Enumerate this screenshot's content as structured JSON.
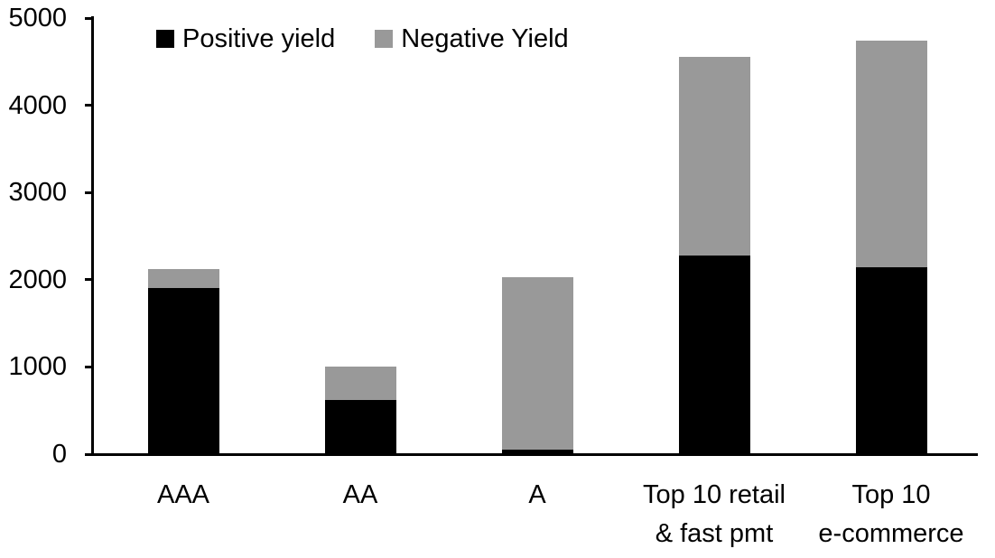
{
  "chart_data": {
    "type": "bar",
    "stacked": true,
    "title": "",
    "xlabel": "",
    "ylabel": "",
    "categories": [
      "AAA",
      "AA",
      "A",
      "Top 10 retail & fast pmt",
      "Top 10 e-commerce"
    ],
    "category_label_lines": [
      [
        "AAA"
      ],
      [
        "AA"
      ],
      [
        "A"
      ],
      [
        "Top 10 retail",
        "& fast pmt"
      ],
      [
        "Top 10",
        "e-commerce"
      ]
    ],
    "series": [
      {
        "name": "Positive yield",
        "color": "#000000",
        "values": [
          1900,
          620,
          50,
          2280,
          2140
        ]
      },
      {
        "name": "Negative Yield",
        "color": "#999999",
        "values": [
          220,
          380,
          1980,
          2270,
          2600
        ]
      }
    ],
    "stack_totals": [
      2120,
      1000,
      2030,
      4550,
      4740
    ],
    "ylim": [
      0,
      5000
    ],
    "yticks": [
      "0",
      "1000",
      "2000",
      "3000",
      "4000",
      "5000"
    ],
    "legend_position": "top-left-inside",
    "grid": false,
    "colors": {
      "positive_yield": "#000000",
      "negative_yield": "#999999",
      "axis": "#000000",
      "background": "#ffffff"
    }
  }
}
